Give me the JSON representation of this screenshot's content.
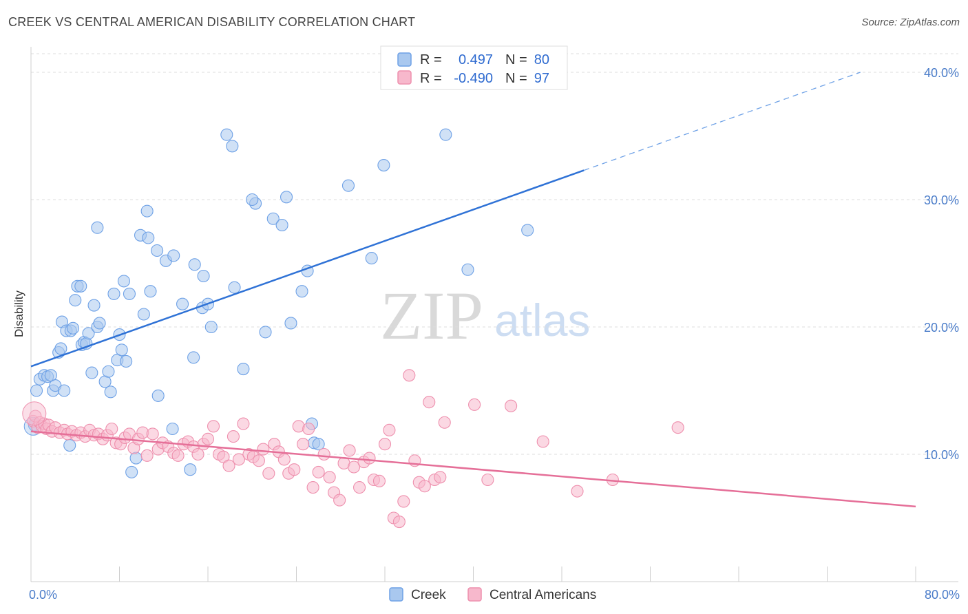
{
  "header": {
    "title": "CREEK VS CENTRAL AMERICAN DISABILITY CORRELATION CHART",
    "source": "Source: ZipAtlas.com"
  },
  "watermark": {
    "zip": "ZIP",
    "atlas": "atlas"
  },
  "legend": {
    "rows": [
      {
        "r_label": "R =",
        "r_value": "0.497",
        "n_label": "N =",
        "n_value": "80",
        "color": "#a9c8ef"
      },
      {
        "r_label": "R =",
        "r_value": "-0.490",
        "n_label": "N =",
        "n_value": "97",
        "color": "#f7b8cc"
      }
    ]
  },
  "bottom_legend": [
    {
      "label": "Creek",
      "color": "#a9c8ef"
    },
    {
      "label": "Central Americans",
      "color": "#f7b8cc"
    }
  ],
  "chart_data": {
    "type": "scatter",
    "title": "CREEK VS CENTRAL AMERICAN DISABILITY CORRELATION CHART",
    "ylabel": "Disability",
    "xlabel": "",
    "xlim": [
      0,
      80
    ],
    "ylim": [
      0,
      42
    ],
    "x_tick_labels": [
      "0.0%",
      "80.0%"
    ],
    "y_ticks": [
      {
        "value": 10,
        "label": "10.0%"
      },
      {
        "value": 20,
        "label": "20.0%"
      },
      {
        "value": 30,
        "label": "30.0%"
      },
      {
        "value": 40,
        "label": "40.0%"
      }
    ],
    "grid": true,
    "legend_position": "top-center",
    "series": [
      {
        "name": "Creek",
        "color": "#6ea1e6",
        "fill": "#a9c8ef",
        "trend": {
          "x0": 0,
          "y0": 16.9,
          "x1": 50,
          "y1": 32.3,
          "dash_to_x": 75,
          "dash_to_y": 40.0
        },
        "points": [
          [
            0.3,
            12.3
          ],
          [
            0.5,
            15.0
          ],
          [
            0.8,
            15.9
          ],
          [
            1.2,
            16.2
          ],
          [
            1.5,
            16.1
          ],
          [
            1.8,
            16.2
          ],
          [
            2.0,
            15.0
          ],
          [
            2.2,
            15.4
          ],
          [
            2.5,
            18.0
          ],
          [
            2.7,
            18.3
          ],
          [
            2.8,
            20.4
          ],
          [
            3.0,
            15.0
          ],
          [
            3.2,
            19.7
          ],
          [
            3.5,
            10.7
          ],
          [
            3.6,
            19.7
          ],
          [
            3.8,
            19.9
          ],
          [
            4.0,
            22.1
          ],
          [
            4.2,
            23.2
          ],
          [
            4.5,
            23.2
          ],
          [
            4.6,
            18.6
          ],
          [
            4.8,
            18.8
          ],
          [
            5.0,
            18.7
          ],
          [
            5.2,
            19.5
          ],
          [
            5.5,
            16.4
          ],
          [
            5.7,
            21.7
          ],
          [
            6.0,
            20.0
          ],
          [
            6.2,
            20.3
          ],
          [
            6.0,
            27.8
          ],
          [
            6.7,
            15.7
          ],
          [
            7.0,
            16.5
          ],
          [
            7.2,
            14.9
          ],
          [
            7.5,
            22.6
          ],
          [
            7.8,
            17.4
          ],
          [
            8.0,
            19.4
          ],
          [
            8.2,
            18.2
          ],
          [
            8.4,
            23.6
          ],
          [
            8.6,
            17.3
          ],
          [
            8.9,
            22.6
          ],
          [
            9.1,
            8.6
          ],
          [
            9.5,
            9.7
          ],
          [
            9.9,
            27.2
          ],
          [
            10.2,
            21.0
          ],
          [
            10.5,
            29.1
          ],
          [
            10.6,
            27.0
          ],
          [
            10.8,
            22.8
          ],
          [
            11.4,
            26.0
          ],
          [
            11.5,
            14.6
          ],
          [
            12.2,
            25.2
          ],
          [
            12.9,
            25.6
          ],
          [
            12.8,
            12.0
          ],
          [
            13.7,
            21.8
          ],
          [
            14.4,
            8.8
          ],
          [
            14.7,
            17.6
          ],
          [
            14.8,
            24.9
          ],
          [
            15.5,
            21.5
          ],
          [
            15.6,
            24.0
          ],
          [
            16.0,
            21.8
          ],
          [
            16.3,
            20.0
          ],
          [
            17.7,
            35.1
          ],
          [
            18.2,
            34.2
          ],
          [
            18.4,
            23.1
          ],
          [
            19.2,
            16.7
          ],
          [
            20.3,
            29.7
          ],
          [
            21.2,
            19.6
          ],
          [
            21.9,
            28.5
          ],
          [
            22.7,
            28.0
          ],
          [
            23.1,
            30.2
          ],
          [
            23.5,
            20.3
          ],
          [
            24.5,
            22.8
          ],
          [
            25.0,
            24.4
          ],
          [
            25.4,
            12.4
          ],
          [
            25.6,
            10.9
          ],
          [
            28.7,
            31.1
          ],
          [
            30.8,
            25.4
          ],
          [
            31.9,
            32.7
          ],
          [
            37.5,
            35.1
          ],
          [
            39.5,
            24.5
          ],
          [
            44.9,
            27.6
          ],
          [
            26.0,
            10.8
          ],
          [
            20.0,
            30.0
          ]
        ]
      },
      {
        "name": "Central Americans",
        "color": "#ee8fad",
        "fill": "#f7b8cc",
        "trend": {
          "x0": 0,
          "y0": 11.8,
          "x1": 80,
          "y1": 5.9
        },
        "points": [
          [
            0.2,
            12.6
          ],
          [
            0.4,
            13.0
          ],
          [
            0.6,
            12.1
          ],
          [
            0.8,
            12.5
          ],
          [
            1.0,
            12.2
          ],
          [
            1.2,
            12.4
          ],
          [
            1.4,
            12.0
          ],
          [
            1.6,
            12.3
          ],
          [
            1.9,
            11.8
          ],
          [
            2.2,
            12.1
          ],
          [
            2.6,
            11.7
          ],
          [
            3.0,
            11.9
          ],
          [
            3.3,
            11.6
          ],
          [
            3.7,
            11.8
          ],
          [
            4.1,
            11.5
          ],
          [
            4.5,
            11.7
          ],
          [
            4.9,
            11.4
          ],
          [
            5.3,
            11.9
          ],
          [
            5.7,
            11.5
          ],
          [
            6.1,
            11.6
          ],
          [
            6.5,
            11.2
          ],
          [
            6.9,
            11.5
          ],
          [
            7.3,
            12.0
          ],
          [
            7.7,
            10.9
          ],
          [
            8.1,
            10.8
          ],
          [
            8.5,
            11.3
          ],
          [
            8.9,
            11.6
          ],
          [
            9.3,
            10.5
          ],
          [
            9.7,
            11.2
          ],
          [
            10.1,
            11.7
          ],
          [
            10.5,
            9.9
          ],
          [
            11.0,
            11.6
          ],
          [
            11.5,
            10.4
          ],
          [
            11.9,
            10.9
          ],
          [
            12.4,
            10.6
          ],
          [
            12.9,
            10.1
          ],
          [
            13.3,
            9.9
          ],
          [
            13.8,
            10.8
          ],
          [
            14.2,
            11.0
          ],
          [
            14.7,
            10.6
          ],
          [
            15.1,
            10.0
          ],
          [
            15.6,
            10.8
          ],
          [
            16.0,
            11.2
          ],
          [
            16.5,
            12.2
          ],
          [
            17.0,
            10.0
          ],
          [
            17.4,
            9.8
          ],
          [
            17.9,
            9.1
          ],
          [
            18.3,
            11.4
          ],
          [
            18.8,
            9.6
          ],
          [
            19.2,
            12.4
          ],
          [
            19.7,
            10.0
          ],
          [
            20.1,
            9.8
          ],
          [
            20.6,
            9.5
          ],
          [
            21.0,
            10.4
          ],
          [
            21.5,
            8.5
          ],
          [
            22.0,
            10.8
          ],
          [
            22.4,
            10.2
          ],
          [
            22.9,
            9.6
          ],
          [
            23.3,
            8.5
          ],
          [
            23.8,
            8.8
          ],
          [
            24.2,
            12.2
          ],
          [
            24.6,
            10.8
          ],
          [
            25.1,
            12.0
          ],
          [
            25.5,
            7.4
          ],
          [
            26.0,
            8.6
          ],
          [
            26.5,
            10.0
          ],
          [
            27.0,
            8.2
          ],
          [
            27.4,
            7.0
          ],
          [
            27.9,
            6.4
          ],
          [
            28.3,
            9.3
          ],
          [
            28.8,
            10.3
          ],
          [
            29.2,
            9.0
          ],
          [
            29.7,
            7.4
          ],
          [
            30.1,
            9.4
          ],
          [
            30.6,
            9.7
          ],
          [
            31.0,
            8.0
          ],
          [
            31.5,
            7.9
          ],
          [
            32.0,
            10.8
          ],
          [
            32.4,
            11.9
          ],
          [
            32.8,
            5.0
          ],
          [
            33.3,
            4.7
          ],
          [
            33.7,
            6.3
          ],
          [
            34.2,
            16.2
          ],
          [
            34.7,
            9.5
          ],
          [
            35.1,
            7.8
          ],
          [
            35.6,
            7.5
          ],
          [
            36.0,
            14.1
          ],
          [
            36.5,
            8.0
          ],
          [
            37.4,
            12.5
          ],
          [
            37.0,
            8.2
          ],
          [
            40.1,
            13.9
          ],
          [
            41.3,
            8.0
          ],
          [
            43.4,
            13.8
          ],
          [
            46.3,
            11.0
          ],
          [
            49.4,
            7.1
          ],
          [
            52.6,
            8.0
          ],
          [
            58.5,
            12.1
          ]
        ]
      }
    ]
  }
}
